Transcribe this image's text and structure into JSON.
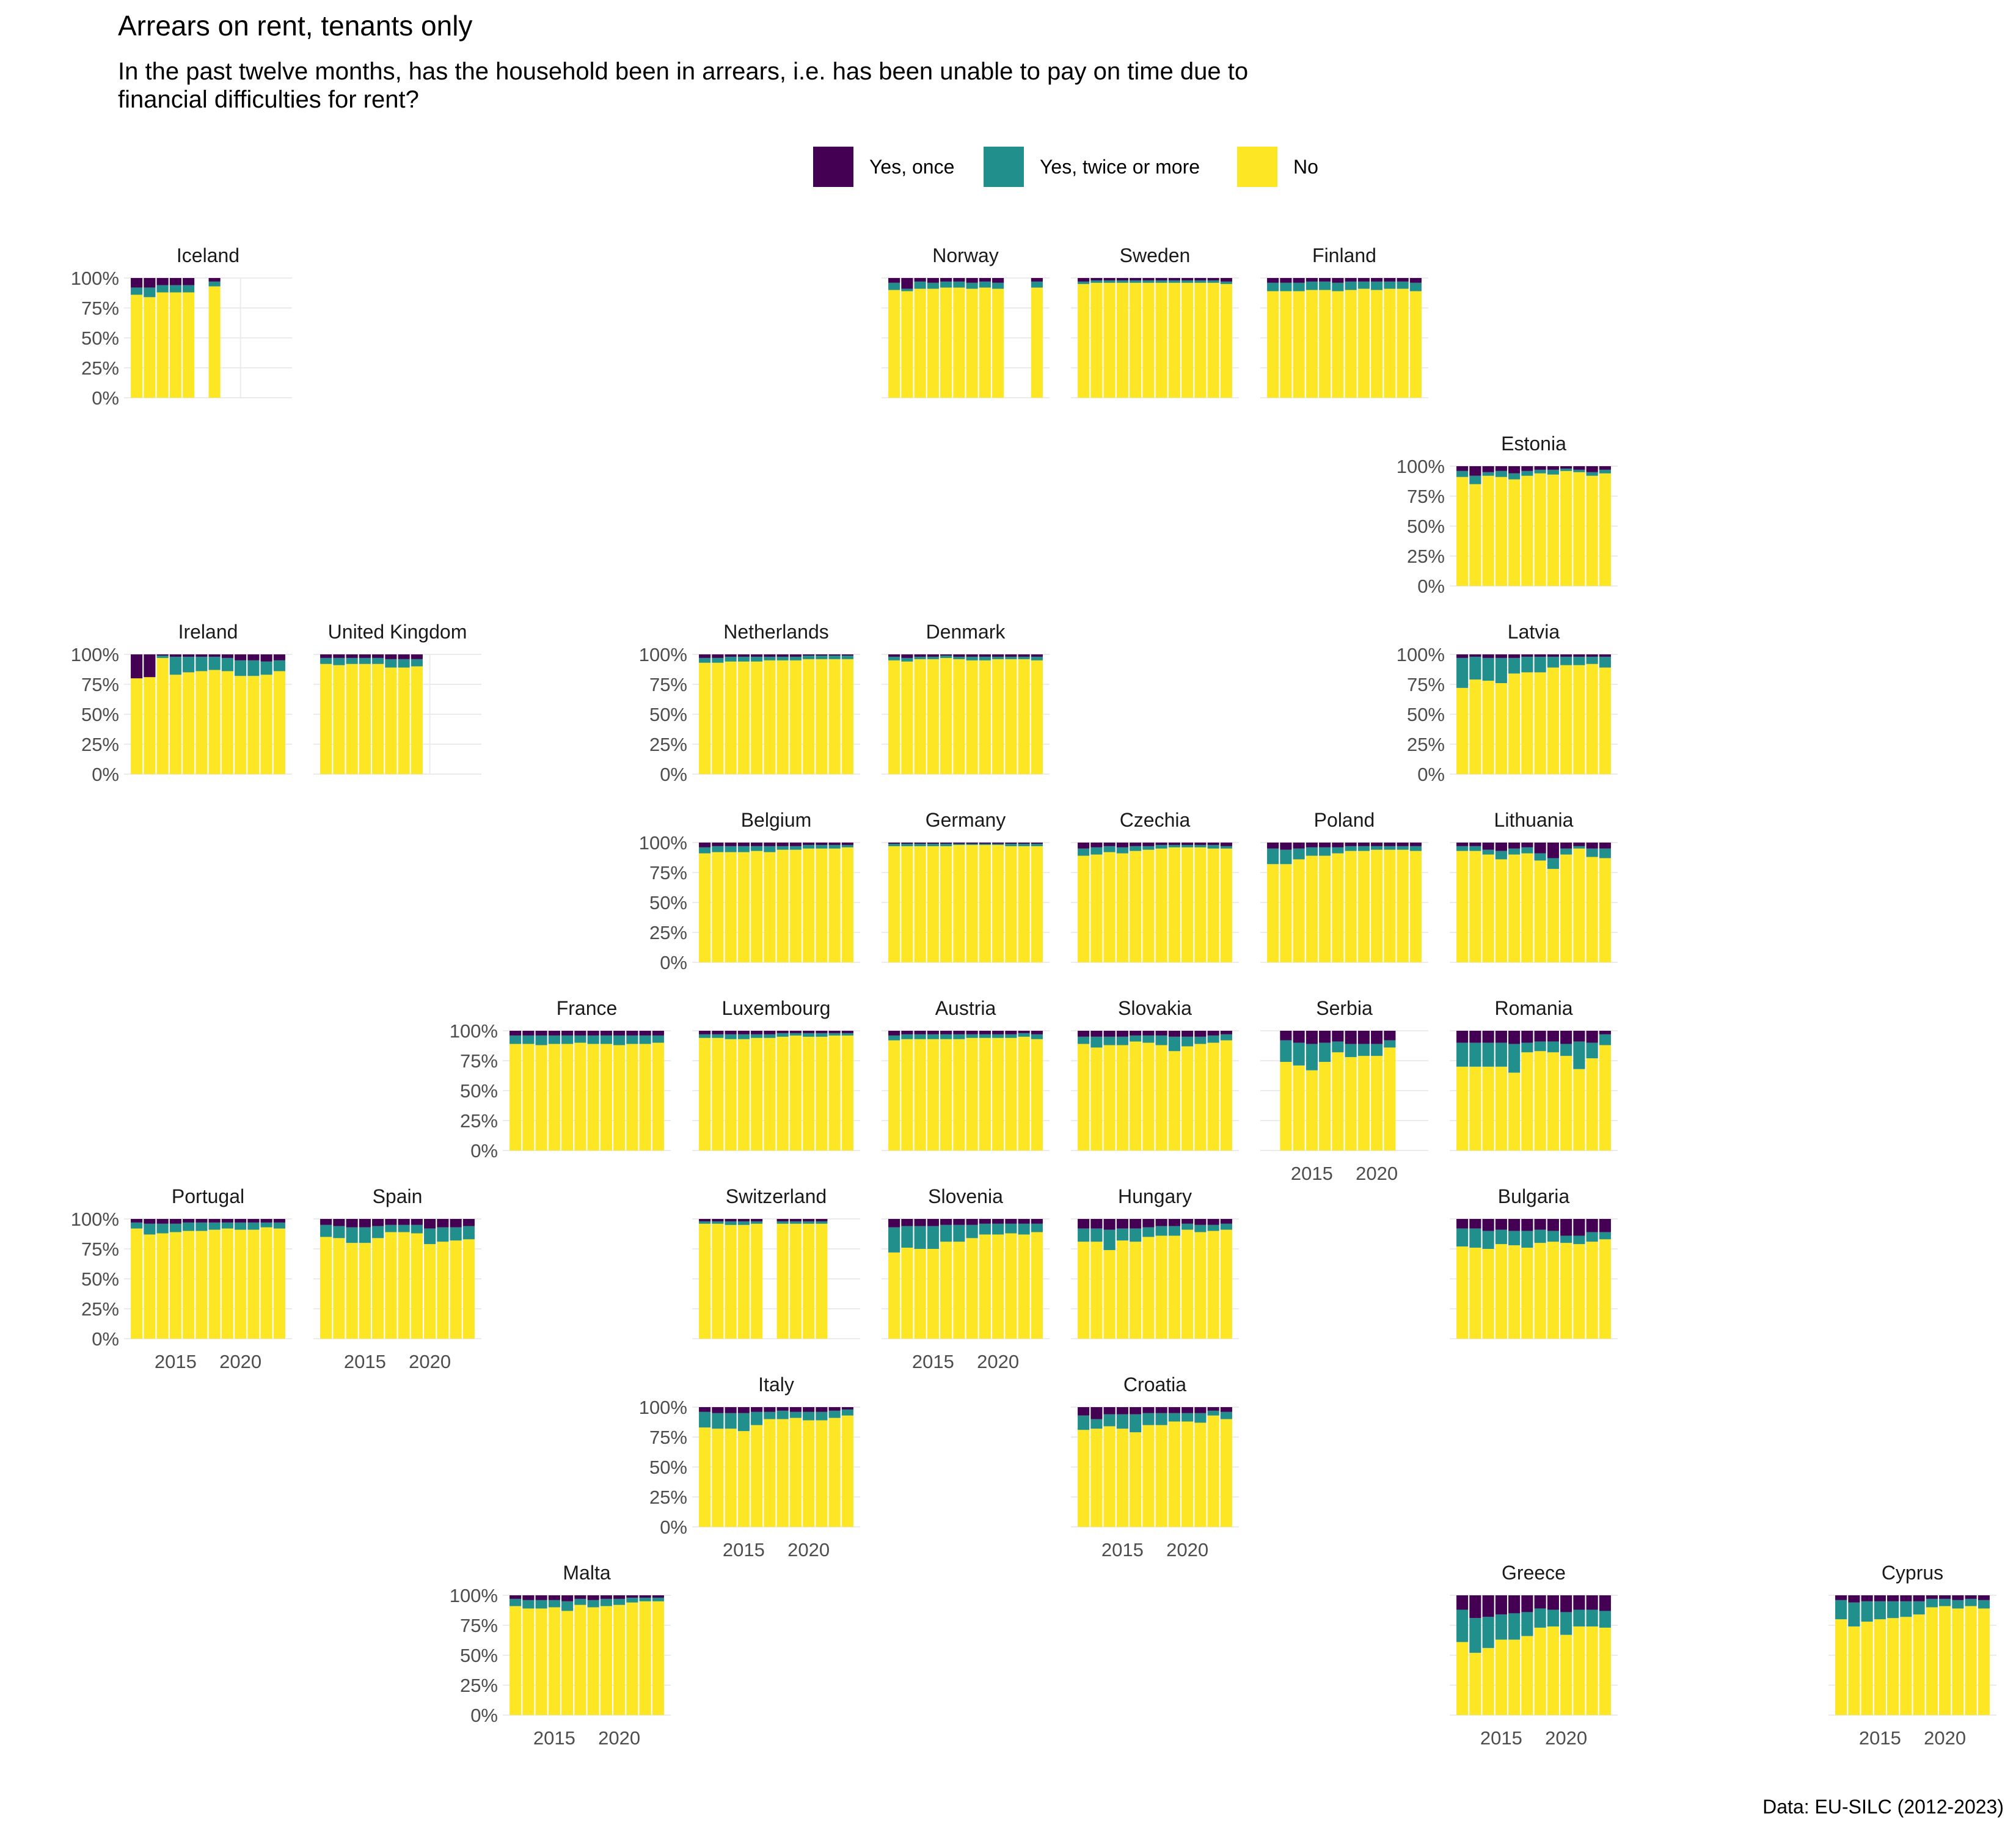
{
  "title": "Arrears on rent, tenants only",
  "subtitle_lines": [
    "In the past twelve months, has the household been in arrears, i.e. has been unable to pay on time due to",
    "financial difficulties for rent?"
  ],
  "caption": "Data: EU-SILC (2012-2023)",
  "legend": [
    {
      "label": "Yes, once",
      "color": "#440154"
    },
    {
      "label": "Yes, twice or more",
      "color": "#21908C"
    },
    {
      "label": "No",
      "color": "#FDE725"
    }
  ],
  "chart_data": {
    "type": "bar",
    "stacked": true,
    "layout": "geofacet grid of European countries",
    "x_range": [
      2012,
      2023
    ],
    "x_ticks": [
      2015,
      2020
    ],
    "x_tick_labels": [
      "2015",
      "2020"
    ],
    "y_range": [
      0,
      1
    ],
    "y_ticks": [
      0,
      0.25,
      0.5,
      0.75,
      1
    ],
    "y_tick_labels": [
      "0%",
      "25%",
      "50%",
      "75%",
      "100%"
    ],
    "series_order": [
      "No",
      "Yes, twice or more",
      "Yes, once"
    ],
    "values_note": "per country: arrays by year 2012-2023 of share answering 'No' and 'Yes, twice or more'; 'Yes, once' is the remainder to 100%; null = no data",
    "panels": [
      {
        "name": "Iceland",
        "row": 0,
        "col": 0,
        "y_axis": true,
        "x_axis": false,
        "no": [
          0.86,
          0.84,
          0.88,
          0.88,
          0.88,
          null,
          0.93,
          null,
          null,
          null,
          null,
          null
        ],
        "twice": [
          0.06,
          0.08,
          0.06,
          0.06,
          0.06,
          null,
          0.04,
          null,
          null,
          null,
          null,
          null
        ]
      },
      {
        "name": "Norway",
        "row": 0,
        "col": 4,
        "y_axis": false,
        "x_axis": false,
        "no": [
          0.9,
          0.89,
          0.91,
          0.91,
          0.92,
          0.92,
          0.91,
          0.92,
          0.91,
          null,
          null,
          0.92
        ],
        "twice": [
          0.06,
          0.02,
          0.06,
          0.05,
          0.05,
          0.05,
          0.05,
          0.05,
          0.05,
          null,
          null,
          0.05
        ]
      },
      {
        "name": "Sweden",
        "row": 0,
        "col": 5,
        "y_axis": false,
        "x_axis": false,
        "no": [
          0.95,
          0.96,
          0.96,
          0.96,
          0.96,
          0.96,
          0.96,
          0.96,
          0.96,
          0.96,
          0.96,
          0.95
        ],
        "twice": [
          0.02,
          0.02,
          0.02,
          0.02,
          0.02,
          0.02,
          0.02,
          0.02,
          0.02,
          0.02,
          0.02,
          0.02
        ]
      },
      {
        "name": "Finland",
        "row": 0,
        "col": 6,
        "y_axis": false,
        "x_axis": false,
        "no": [
          0.89,
          0.89,
          0.89,
          0.9,
          0.9,
          0.89,
          0.9,
          0.91,
          0.9,
          0.91,
          0.91,
          0.89
        ],
        "twice": [
          0.07,
          0.07,
          0.07,
          0.07,
          0.07,
          0.07,
          0.07,
          0.06,
          0.07,
          0.06,
          0.06,
          0.07
        ]
      },
      {
        "name": "Estonia",
        "row": 1,
        "col": 7,
        "y_axis": true,
        "x_axis": false,
        "no": [
          0.91,
          0.85,
          0.92,
          0.91,
          0.89,
          0.92,
          0.94,
          0.93,
          0.96,
          0.95,
          0.92,
          0.94
        ],
        "twice": [
          0.05,
          0.07,
          0.03,
          0.05,
          0.05,
          0.04,
          0.03,
          0.04,
          0.02,
          0.02,
          0.03,
          0.03
        ]
      },
      {
        "name": "Ireland",
        "row": 2,
        "col": 0,
        "y_axis": true,
        "x_axis": false,
        "no": [
          0.8,
          0.81,
          0.97,
          0.83,
          0.85,
          0.86,
          0.87,
          0.86,
          0.82,
          0.82,
          0.83,
          0.86
        ],
        "twice": [
          0.0,
          0.0,
          0.02,
          0.15,
          0.13,
          0.12,
          0.11,
          0.11,
          0.13,
          0.13,
          0.11,
          0.09
        ]
      },
      {
        "name": "United Kingdom",
        "row": 2,
        "col": 1,
        "y_axis": false,
        "x_axis": false,
        "no": [
          0.92,
          0.91,
          0.92,
          0.92,
          0.92,
          0.89,
          0.89,
          0.9,
          null,
          null,
          null,
          null
        ],
        "twice": [
          0.05,
          0.06,
          0.05,
          0.05,
          0.05,
          0.07,
          0.07,
          0.06,
          null,
          null,
          null,
          null
        ]
      },
      {
        "name": "Netherlands",
        "row": 2,
        "col": 3,
        "y_axis": true,
        "x_axis": false,
        "no": [
          0.93,
          0.93,
          0.94,
          0.94,
          0.94,
          0.95,
          0.95,
          0.95,
          0.96,
          0.96,
          0.96,
          0.96
        ],
        "twice": [
          0.04,
          0.04,
          0.04,
          0.04,
          0.04,
          0.03,
          0.03,
          0.03,
          0.03,
          0.03,
          0.03,
          0.03
        ]
      },
      {
        "name": "Denmark",
        "row": 2,
        "col": 4,
        "y_axis": false,
        "x_axis": false,
        "no": [
          0.95,
          0.94,
          0.96,
          0.96,
          0.97,
          0.96,
          0.95,
          0.95,
          0.96,
          0.96,
          0.96,
          0.95
        ],
        "twice": [
          0.03,
          0.03,
          0.02,
          0.02,
          0.02,
          0.02,
          0.03,
          0.03,
          0.02,
          0.02,
          0.02,
          0.03
        ]
      },
      {
        "name": "Latvia",
        "row": 2,
        "col": 7,
        "y_axis": true,
        "x_axis": false,
        "no": [
          0.72,
          0.79,
          0.78,
          0.76,
          0.84,
          0.85,
          0.85,
          0.89,
          0.91,
          0.91,
          0.92,
          0.89
        ],
        "twice": [
          0.25,
          0.19,
          0.19,
          0.21,
          0.13,
          0.13,
          0.13,
          0.09,
          0.07,
          0.07,
          0.06,
          0.09
        ]
      },
      {
        "name": "Belgium",
        "row": 3,
        "col": 3,
        "y_axis": true,
        "x_axis": false,
        "no": [
          0.91,
          0.92,
          0.92,
          0.92,
          0.93,
          0.92,
          0.94,
          0.94,
          0.95,
          0.95,
          0.95,
          0.96
        ],
        "twice": [
          0.05,
          0.05,
          0.05,
          0.05,
          0.04,
          0.05,
          0.03,
          0.03,
          0.03,
          0.03,
          0.03,
          0.02
        ]
      },
      {
        "name": "Germany",
        "row": 3,
        "col": 4,
        "y_axis": false,
        "x_axis": false,
        "no": [
          0.97,
          0.97,
          0.97,
          0.97,
          0.97,
          0.98,
          0.98,
          0.98,
          0.98,
          0.97,
          0.97,
          0.97
        ],
        "twice": [
          0.02,
          0.02,
          0.02,
          0.02,
          0.02,
          0.01,
          0.01,
          0.01,
          0.01,
          0.02,
          0.02,
          0.02
        ]
      },
      {
        "name": "Czechia",
        "row": 3,
        "col": 5,
        "y_axis": false,
        "x_axis": false,
        "no": [
          0.89,
          0.9,
          0.92,
          0.91,
          0.93,
          0.94,
          0.95,
          0.96,
          0.96,
          0.96,
          0.95,
          0.95
        ],
        "twice": [
          0.06,
          0.06,
          0.05,
          0.05,
          0.04,
          0.03,
          0.03,
          0.02,
          0.02,
          0.02,
          0.03,
          0.02
        ]
      },
      {
        "name": "Poland",
        "row": 3,
        "col": 6,
        "y_axis": false,
        "x_axis": false,
        "no": [
          0.82,
          0.82,
          0.86,
          0.89,
          0.89,
          0.91,
          0.93,
          0.93,
          0.94,
          0.94,
          0.94,
          0.93
        ],
        "twice": [
          0.13,
          0.12,
          0.09,
          0.07,
          0.07,
          0.05,
          0.04,
          0.04,
          0.03,
          0.03,
          0.03,
          0.04
        ]
      },
      {
        "name": "Lithuania",
        "row": 3,
        "col": 7,
        "y_axis": false,
        "x_axis": false,
        "no": [
          0.93,
          0.93,
          0.9,
          0.86,
          0.9,
          0.91,
          0.85,
          0.78,
          0.9,
          0.95,
          0.88,
          0.87
        ],
        "twice": [
          0.04,
          0.04,
          0.04,
          0.07,
          0.05,
          0.05,
          0.06,
          0.09,
          0.05,
          0.02,
          0.07,
          0.08
        ]
      },
      {
        "name": "France",
        "row": 4,
        "col": 2,
        "y_axis": true,
        "x_axis": false,
        "no": [
          0.89,
          0.89,
          0.88,
          0.89,
          0.89,
          0.9,
          0.89,
          0.89,
          0.88,
          0.89,
          0.89,
          0.9
        ],
        "twice": [
          0.07,
          0.07,
          0.08,
          0.07,
          0.07,
          0.06,
          0.07,
          0.07,
          0.08,
          0.07,
          0.07,
          0.06
        ]
      },
      {
        "name": "Luxembourg",
        "row": 4,
        "col": 3,
        "y_axis": false,
        "x_axis": false,
        "no": [
          0.94,
          0.94,
          0.93,
          0.93,
          0.94,
          0.94,
          0.95,
          0.96,
          0.95,
          0.95,
          0.96,
          0.96
        ],
        "twice": [
          0.03,
          0.03,
          0.04,
          0.04,
          0.03,
          0.03,
          0.03,
          0.02,
          0.03,
          0.03,
          0.02,
          0.02
        ]
      },
      {
        "name": "Austria",
        "row": 4,
        "col": 4,
        "y_axis": false,
        "x_axis": false,
        "no": [
          0.92,
          0.93,
          0.93,
          0.93,
          0.93,
          0.93,
          0.94,
          0.94,
          0.94,
          0.94,
          0.95,
          0.93
        ],
        "twice": [
          0.04,
          0.04,
          0.04,
          0.04,
          0.04,
          0.04,
          0.03,
          0.03,
          0.03,
          0.03,
          0.03,
          0.04
        ]
      },
      {
        "name": "Slovakia",
        "row": 4,
        "col": 5,
        "y_axis": false,
        "x_axis": false,
        "no": [
          0.89,
          0.86,
          0.88,
          0.88,
          0.91,
          0.9,
          0.88,
          0.83,
          0.87,
          0.89,
          0.9,
          0.92
        ],
        "twice": [
          0.06,
          0.09,
          0.07,
          0.07,
          0.05,
          0.06,
          0.08,
          0.12,
          0.08,
          0.06,
          0.06,
          0.05
        ]
      },
      {
        "name": "Serbia",
        "row": 4,
        "col": 6,
        "y_axis": false,
        "x_axis": true,
        "no": [
          null,
          0.74,
          0.71,
          0.67,
          0.74,
          0.82,
          0.78,
          0.79,
          0.79,
          0.86,
          null,
          null
        ],
        "twice": [
          null,
          0.18,
          0.19,
          0.22,
          0.16,
          0.09,
          0.11,
          0.1,
          0.1,
          0.06,
          null,
          null
        ]
      },
      {
        "name": "Romania",
        "row": 4,
        "col": 7,
        "y_axis": false,
        "x_axis": false,
        "no": [
          0.7,
          0.7,
          0.7,
          0.7,
          0.65,
          0.82,
          0.83,
          0.82,
          0.79,
          0.68,
          0.77,
          0.88
        ],
        "twice": [
          0.2,
          0.2,
          0.2,
          0.2,
          0.24,
          0.08,
          0.08,
          0.09,
          0.1,
          0.23,
          0.13,
          0.09
        ]
      },
      {
        "name": "Portugal",
        "row": 5,
        "col": 0,
        "y_axis": true,
        "x_axis": true,
        "no": [
          0.92,
          0.87,
          0.88,
          0.89,
          0.9,
          0.9,
          0.91,
          0.92,
          0.91,
          0.91,
          0.93,
          0.92
        ],
        "twice": [
          0.05,
          0.09,
          0.08,
          0.07,
          0.07,
          0.07,
          0.06,
          0.05,
          0.06,
          0.06,
          0.04,
          0.05
        ]
      },
      {
        "name": "Spain",
        "row": 5,
        "col": 1,
        "y_axis": false,
        "x_axis": true,
        "no": [
          0.85,
          0.84,
          0.8,
          0.8,
          0.84,
          0.89,
          0.89,
          0.88,
          0.79,
          0.81,
          0.82,
          0.83
        ],
        "twice": [
          0.1,
          0.1,
          0.13,
          0.13,
          0.1,
          0.06,
          0.06,
          0.07,
          0.13,
          0.12,
          0.11,
          0.11
        ]
      },
      {
        "name": "Switzerland",
        "row": 5,
        "col": 3,
        "y_axis": false,
        "x_axis": false,
        "no": [
          0.96,
          0.96,
          0.95,
          0.95,
          0.96,
          null,
          0.96,
          0.96,
          0.96,
          0.96,
          null,
          null
        ],
        "twice": [
          0.02,
          0.02,
          0.03,
          0.03,
          0.02,
          null,
          0.02,
          0.02,
          0.02,
          0.02,
          null,
          null
        ]
      },
      {
        "name": "Slovenia",
        "row": 5,
        "col": 4,
        "y_axis": false,
        "x_axis": true,
        "no": [
          0.72,
          0.76,
          0.75,
          0.75,
          0.81,
          0.81,
          0.84,
          0.87,
          0.87,
          0.88,
          0.87,
          0.89
        ],
        "twice": [
          0.21,
          0.18,
          0.19,
          0.19,
          0.14,
          0.14,
          0.11,
          0.09,
          0.09,
          0.08,
          0.09,
          0.07
        ]
      },
      {
        "name": "Hungary",
        "row": 5,
        "col": 5,
        "y_axis": false,
        "x_axis": false,
        "no": [
          0.81,
          0.81,
          0.74,
          0.82,
          0.81,
          0.85,
          0.86,
          0.86,
          0.91,
          0.89,
          0.9,
          0.91
        ],
        "twice": [
          0.11,
          0.11,
          0.17,
          0.1,
          0.11,
          0.08,
          0.08,
          0.08,
          0.05,
          0.06,
          0.05,
          0.05
        ]
      },
      {
        "name": "Bulgaria",
        "row": 5,
        "col": 7,
        "y_axis": false,
        "x_axis": false,
        "no": [
          0.77,
          0.76,
          0.75,
          0.79,
          0.78,
          0.76,
          0.8,
          0.81,
          0.8,
          0.79,
          0.81,
          0.83
        ],
        "twice": [
          0.15,
          0.16,
          0.15,
          0.12,
          0.12,
          0.14,
          0.11,
          0.09,
          0.06,
          0.07,
          0.08,
          0.06
        ]
      },
      {
        "name": "Italy",
        "row": 6,
        "col": 3,
        "y_axis": true,
        "x_axis": true,
        "no": [
          0.83,
          0.82,
          0.82,
          0.8,
          0.85,
          0.9,
          0.9,
          0.91,
          0.89,
          0.89,
          0.91,
          0.93
        ],
        "twice": [
          0.13,
          0.13,
          0.13,
          0.15,
          0.11,
          0.06,
          0.07,
          0.05,
          0.07,
          0.07,
          0.06,
          0.05
        ]
      },
      {
        "name": "Croatia",
        "row": 6,
        "col": 5,
        "y_axis": false,
        "x_axis": true,
        "no": [
          0.81,
          0.82,
          0.84,
          0.82,
          0.79,
          0.85,
          0.85,
          0.88,
          0.88,
          0.87,
          0.93,
          0.9
        ],
        "twice": [
          0.12,
          0.08,
          0.1,
          0.12,
          0.15,
          0.1,
          0.1,
          0.07,
          0.07,
          0.08,
          0.04,
          0.06
        ]
      },
      {
        "name": "Malta",
        "row": 7,
        "col": 2,
        "y_axis": true,
        "x_axis": true,
        "no": [
          0.91,
          0.89,
          0.89,
          0.9,
          0.87,
          0.92,
          0.9,
          0.91,
          0.92,
          0.94,
          0.95,
          0.95
        ],
        "twice": [
          0.06,
          0.07,
          0.07,
          0.06,
          0.08,
          0.05,
          0.06,
          0.06,
          0.05,
          0.04,
          0.03,
          0.03
        ]
      },
      {
        "name": "Greece",
        "row": 7,
        "col": 7,
        "y_axis": false,
        "x_axis": true,
        "no": [
          0.61,
          0.52,
          0.56,
          0.63,
          0.63,
          0.66,
          0.73,
          0.74,
          0.67,
          0.74,
          0.74,
          0.73
        ],
        "twice": [
          0.27,
          0.29,
          0.26,
          0.21,
          0.22,
          0.2,
          0.16,
          0.14,
          0.19,
          0.14,
          0.14,
          0.14
        ]
      },
      {
        "name": "Cyprus",
        "row": 7,
        "col": 9,
        "y_axis": false,
        "x_axis": true,
        "no": [
          0.8,
          0.74,
          0.78,
          0.8,
          0.81,
          0.82,
          0.84,
          0.9,
          0.91,
          0.89,
          0.91,
          0.89
        ],
        "twice": [
          0.16,
          0.2,
          0.17,
          0.15,
          0.14,
          0.13,
          0.11,
          0.07,
          0.06,
          0.07,
          0.06,
          0.07
        ]
      }
    ]
  }
}
